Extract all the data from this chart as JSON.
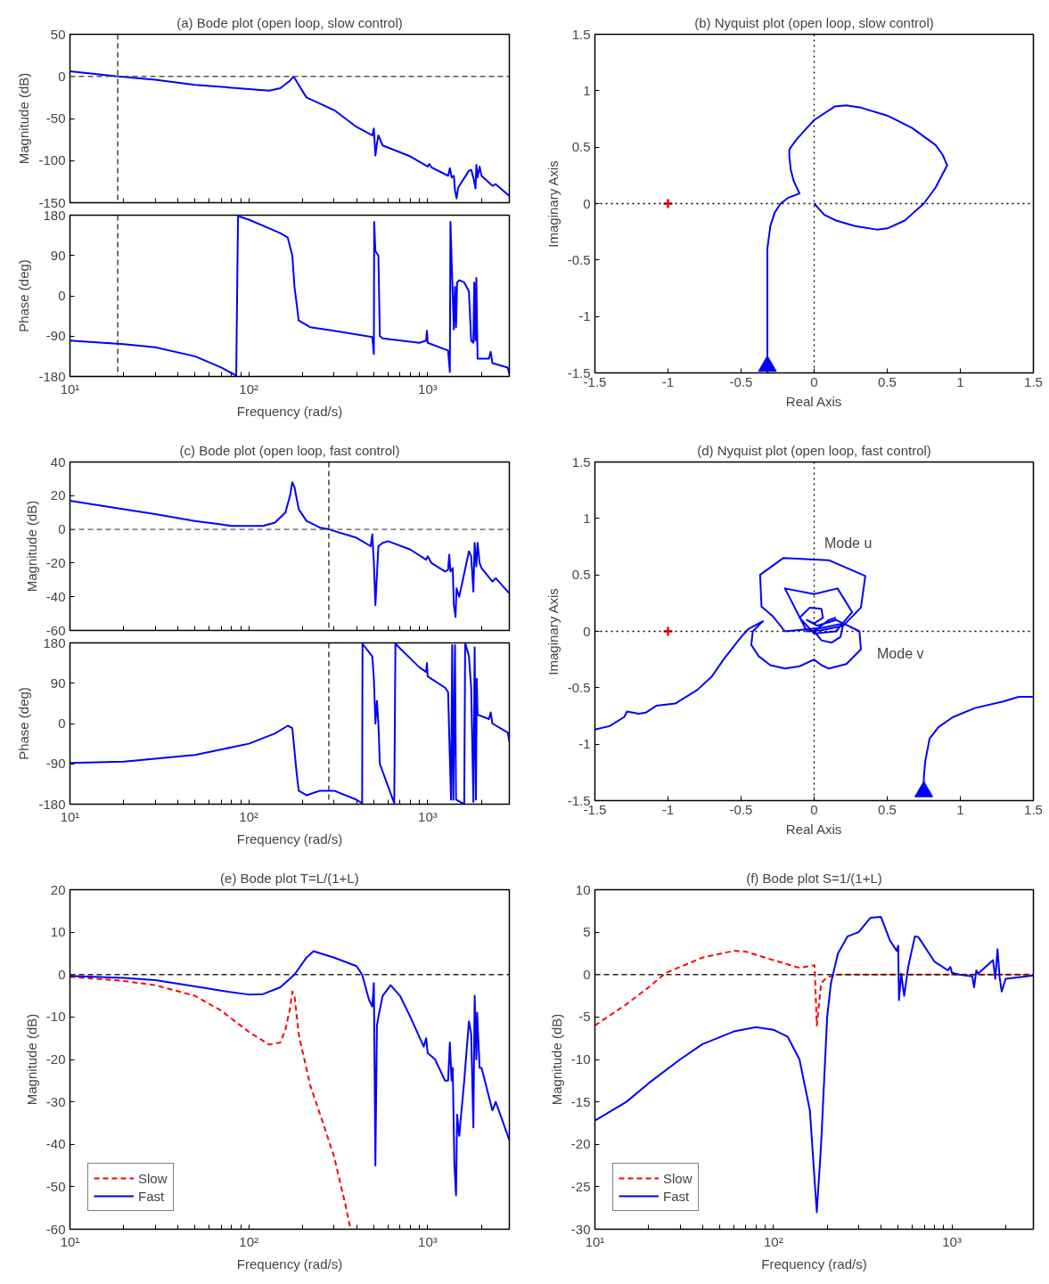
{
  "chart_data": [
    {
      "type": "line",
      "title": "(a) Bode plot (open loop, slow control)",
      "ylabel": "Magnitude (dB)",
      "log": "x",
      "tick_labels": "y",
      "grid": false,
      "xlim": [
        10,
        2860
      ],
      "ylim": [
        -150,
        50
      ],
      "yticks": [
        -150,
        -100,
        -50,
        0,
        50
      ],
      "xticks": [
        {
          "value": 10,
          "label": null
        },
        {
          "value": 20,
          "label": null
        },
        {
          "value": 30,
          "label": null
        },
        {
          "value": 40,
          "label": null
        },
        {
          "value": 50,
          "label": null
        },
        {
          "value": 60,
          "label": null
        },
        {
          "value": 70,
          "label": null
        },
        {
          "value": 80,
          "label": null
        },
        {
          "value": 90,
          "label": null
        },
        {
          "value": 100,
          "label": null
        },
        {
          "value": 200,
          "label": null
        },
        {
          "value": 300,
          "label": null
        },
        {
          "value": 400,
          "label": null
        },
        {
          "value": 500,
          "label": null
        },
        {
          "value": 600,
          "label": null
        },
        {
          "value": 700,
          "label": null
        },
        {
          "value": 800,
          "label": null
        },
        {
          "value": 900,
          "label": null
        },
        {
          "value": 1000,
          "label": null
        },
        {
          "value": 2000,
          "label": null
        }
      ],
      "ref_lines": [
        {
          "axis": "y",
          "value": 0,
          "label": null,
          "color": "#555555",
          "line_style": "dashed"
        },
        {
          "axis": "x",
          "value": 18.5,
          "label": null,
          "color": "#222222",
          "line_style": "dashed"
        }
      ],
      "series": [
        {
          "color": "#0000ff",
          "x": [
            10,
            18.5,
            30,
            50,
            100,
            130,
            150,
            170,
            178,
            190,
            210,
            300,
            400,
            490,
            500,
            510,
            520,
            530,
            560,
            800,
            1000,
            1020,
            1050,
            1300,
            1330,
            1360,
            1400,
            1420,
            1450,
            1480,
            1700,
            1750,
            1800,
            1850,
            1870,
            1900,
            1950,
            2000,
            2300,
            2400,
            2860
          ],
          "values": [
            6,
            0,
            -4,
            -10,
            -15,
            -17,
            -14,
            -5,
            0,
            -10,
            -25,
            -40,
            -60,
            -70,
            -62,
            -94,
            -80,
            -70,
            -82,
            -95,
            -107,
            -104,
            -108,
            -118,
            -109,
            -120,
            -118,
            -135,
            -145,
            -132,
            -112,
            -111,
            -120,
            -133,
            -105,
            -120,
            -107,
            -118,
            -130,
            -128,
            -142
          ]
        }
      ]
    },
    {
      "type": "line",
      "ylabel": "Phase (deg)",
      "xlabel": "Frequency (rad/s)",
      "log": "x",
      "grid": false,
      "xlim": [
        10,
        2860
      ],
      "ylim": [
        -180,
        180
      ],
      "yticks": [
        -180,
        -90,
        0,
        90,
        180
      ],
      "xticks": [
        {
          "value": 10,
          "label": "10¹"
        },
        {
          "value": 20,
          "label": null
        },
        {
          "value": 30,
          "label": null
        },
        {
          "value": 40,
          "label": null
        },
        {
          "value": 50,
          "label": null
        },
        {
          "value": 60,
          "label": null
        },
        {
          "value": 70,
          "label": null
        },
        {
          "value": 80,
          "label": null
        },
        {
          "value": 90,
          "label": null
        },
        {
          "value": 100,
          "label": "10²"
        },
        {
          "value": 200,
          "label": null
        },
        {
          "value": 300,
          "label": null
        },
        {
          "value": 400,
          "label": null
        },
        {
          "value": 500,
          "label": null
        },
        {
          "value": 600,
          "label": null
        },
        {
          "value": 700,
          "label": null
        },
        {
          "value": 800,
          "label": null
        },
        {
          "value": 900,
          "label": null
        },
        {
          "value": 1000,
          "label": "10³"
        },
        {
          "value": 2000,
          "label": null
        }
      ],
      "ref_lines": [
        {
          "axis": "x",
          "value": 18.5,
          "label": null,
          "color": "#222222",
          "line_style": "dashed"
        }
      ],
      "series": [
        {
          "color": "#0000ff",
          "x": [
            10,
            20,
            30,
            50,
            70,
            85,
            87,
            100,
            150,
            165,
            175,
            180,
            190,
            220,
            300,
            490,
            500,
            502,
            510,
            530,
            540,
            560,
            900,
            980,
            990,
            1000,
            1300,
            1330,
            1340,
            1360,
            1400,
            1420,
            1440,
            1460,
            1500,
            1600,
            1700,
            1750,
            1800,
            1820,
            1850,
            1870,
            1900,
            2200,
            2250,
            2300,
            2800,
            2860
          ],
          "values": [
            -100,
            -108,
            -115,
            -135,
            -160,
            -178,
            178,
            170,
            140,
            130,
            90,
            20,
            -55,
            -70,
            -78,
            -92,
            -130,
            165,
            100,
            90,
            -90,
            -95,
            -105,
            -100,
            -78,
            -105,
            -122,
            -170,
            165,
            80,
            -75,
            20,
            -70,
            30,
            35,
            30,
            10,
            -100,
            -105,
            30,
            -100,
            40,
            -140,
            -140,
            -125,
            -150,
            -160,
            -175
          ]
        }
      ]
    },
    {
      "type": "line",
      "title": "(b) Nyquist plot (open loop, slow control)",
      "xlabel": "Real Axis",
      "ylabel": "Imaginary Axis",
      "grid": false,
      "xlim": [
        -1.5,
        1.5
      ],
      "ylim": [
        -1.5,
        1.5
      ],
      "xticks": [
        -1.5,
        -1,
        -0.5,
        0,
        0.5,
        1,
        1.5
      ],
      "yticks": [
        -1.5,
        -1,
        -0.5,
        0,
        0.5,
        1,
        1.5
      ],
      "ref_lines": [
        {
          "axis": "x",
          "value": 0,
          "label": null,
          "color": "#000000",
          "line_style": "dotted"
        },
        {
          "axis": "y",
          "value": 0,
          "label": null,
          "color": "#000000",
          "line_style": "dotted"
        }
      ],
      "series": [
        {
          "color": "#0000ff",
          "x": [
            -0.32,
            -0.32,
            -0.32,
            -0.3,
            -0.27,
            -0.23,
            -0.18,
            -0.1,
            -0.14,
            -0.16,
            -0.17,
            -0.17,
            -0.12,
            -0.05,
            0,
            0.14,
            0.22,
            0.32,
            0.5,
            0.67,
            0.83,
            0.88,
            0.91,
            0.83,
            0.75,
            0.62,
            0.5,
            0.43,
            0.28,
            0.15,
            0.07,
            0
          ],
          "values": [
            -1.5,
            -0.8,
            -0.4,
            -0.2,
            -0.08,
            0,
            0.05,
            0.09,
            0.2,
            0.3,
            0.42,
            0.48,
            0.57,
            0.67,
            0.74,
            0.86,
            0.87,
            0.85,
            0.78,
            0.67,
            0.52,
            0.43,
            0.34,
            0.14,
            0,
            -0.15,
            -0.22,
            -0.23,
            -0.2,
            -0.15,
            -0.1,
            0
          ]
        },
        {
          "type": "scatter",
          "marker": "triangle",
          "color": "#0000ff",
          "x": [
            -0.32
          ],
          "values": [
            -1.44
          ]
        },
        {
          "type": "scatter",
          "marker": "cross",
          "color": "#ff0000",
          "x": [
            -1
          ],
          "values": [
            0
          ]
        }
      ]
    },
    {
      "type": "line",
      "title": "(c) Bode plot (open loop, fast control)",
      "ylabel": "Magnitude (dB)",
      "log": "x",
      "tick_labels": "y",
      "grid": false,
      "xlim": [
        10,
        2860
      ],
      "ylim": [
        -60,
        40
      ],
      "yticks": [
        -60,
        -40,
        -20,
        0,
        20,
        40
      ],
      "xticks": [
        {
          "value": 10,
          "label": null
        },
        {
          "value": 20,
          "label": null
        },
        {
          "value": 30,
          "label": null
        },
        {
          "value": 40,
          "label": null
        },
        {
          "value": 50,
          "label": null
        },
        {
          "value": 60,
          "label": null
        },
        {
          "value": 70,
          "label": null
        },
        {
          "value": 80,
          "label": null
        },
        {
          "value": 90,
          "label": null
        },
        {
          "value": 100,
          "label": null
        },
        {
          "value": 200,
          "label": null
        },
        {
          "value": 300,
          "label": null
        },
        {
          "value": 400,
          "label": null
        },
        {
          "value": 500,
          "label": null
        },
        {
          "value": 600,
          "label": null
        },
        {
          "value": 700,
          "label": null
        },
        {
          "value": 800,
          "label": null
        },
        {
          "value": 900,
          "label": null
        },
        {
          "value": 1000,
          "label": null
        },
        {
          "value": 2000,
          "label": null
        }
      ],
      "ref_lines": [
        {
          "axis": "y",
          "value": 0,
          "label": null,
          "color": "#555555",
          "line_style": "dashed"
        },
        {
          "axis": "x",
          "value": 280,
          "label": null,
          "color": "#222222",
          "line_style": "dashed"
        }
      ],
      "series": [
        {
          "color": "#0000ff",
          "x": [
            10,
            20,
            30,
            50,
            70,
            80,
            120,
            140,
            160,
            170,
            175,
            180,
            190,
            210,
            250,
            280,
            400,
            480,
            490,
            500,
            510,
            530,
            560,
            600,
            800,
            980,
            1000,
            1050,
            1250,
            1300,
            1320,
            1340,
            1380,
            1400,
            1430,
            1450,
            1500,
            1700,
            1750,
            1800,
            1830,
            1870,
            1900,
            1950,
            2000,
            2300,
            2400,
            2860
          ],
          "values": [
            17,
            12,
            9,
            5,
            3,
            2,
            2,
            4,
            10,
            20,
            28,
            25,
            12,
            5,
            1,
            0,
            -5,
            -10,
            -3,
            -20,
            -45,
            -10,
            -8,
            -7,
            -12,
            -18,
            -16,
            -20,
            -25,
            -24,
            -15,
            -25,
            -23,
            -45,
            -52,
            -35,
            -40,
            -13,
            -16,
            -37,
            -8,
            -22,
            -8,
            -20,
            -23,
            -31,
            -29,
            -38
          ]
        }
      ]
    },
    {
      "type": "line",
      "ylabel": "Phase (deg)",
      "xlabel": "Frequency (rad/s)",
      "log": "x",
      "grid": false,
      "xlim": [
        10,
        2860
      ],
      "ylim": [
        -180,
        180
      ],
      "yticks": [
        -180,
        -90,
        0,
        90,
        180
      ],
      "xticks": [
        {
          "value": 10,
          "label": "10¹"
        },
        {
          "value": 20,
          "label": null
        },
        {
          "value": 30,
          "label": null
        },
        {
          "value": 40,
          "label": null
        },
        {
          "value": 50,
          "label": null
        },
        {
          "value": 60,
          "label": null
        },
        {
          "value": 70,
          "label": null
        },
        {
          "value": 80,
          "label": null
        },
        {
          "value": 90,
          "label": null
        },
        {
          "value": 100,
          "label": "10²"
        },
        {
          "value": 200,
          "label": null
        },
        {
          "value": 300,
          "label": null
        },
        {
          "value": 400,
          "label": null
        },
        {
          "value": 500,
          "label": null
        },
        {
          "value": 600,
          "label": null
        },
        {
          "value": 700,
          "label": null
        },
        {
          "value": 800,
          "label": null
        },
        {
          "value": 900,
          "label": null
        },
        {
          "value": 1000,
          "label": "10³"
        },
        {
          "value": 2000,
          "label": null
        }
      ],
      "ref_lines": [
        {
          "axis": "x",
          "value": 280,
          "label": null,
          "color": "#222222",
          "line_style": "dashed"
        }
      ],
      "series": [
        {
          "color": "#0000ff",
          "x": [
            10,
            20,
            50,
            100,
            140,
            165,
            175,
            185,
            190,
            210,
            250,
            300,
            400,
            430,
            432,
            490,
            500,
            510,
            520,
            530,
            540,
            600,
            650,
            660,
            900,
            980,
            990,
            1000,
            1250,
            1300,
            1330,
            1350,
            1370,
            1390,
            1420,
            1440,
            1600,
            1620,
            1700,
            1750,
            1800,
            1830,
            1860,
            1880,
            1900,
            2200,
            2250,
            2300,
            2800,
            2860
          ],
          "values": [
            -88,
            -85,
            -70,
            -45,
            -22,
            -5,
            -10,
            -110,
            -150,
            -160,
            -150,
            -150,
            -170,
            -178,
            178,
            150,
            100,
            0,
            50,
            0,
            -90,
            -140,
            -178,
            178,
            125,
            115,
            135,
            105,
            80,
            70,
            -80,
            -170,
            175,
            -170,
            175,
            -170,
            -180,
            180,
            150,
            80,
            -175,
            170,
            -170,
            100,
            20,
            10,
            25,
            0,
            -20,
            -40
          ]
        }
      ]
    },
    {
      "type": "line",
      "title": "(d) Nyquist plot (open loop, fast control)",
      "xlabel": "Real Axis",
      "ylabel": "Imaginary Axis",
      "grid": false,
      "xlim": [
        -1.5,
        1.5
      ],
      "ylim": [
        -1.5,
        1.5
      ],
      "xticks": [
        -1.5,
        -1,
        -0.5,
        0,
        0.5,
        1,
        1.5
      ],
      "yticks": [
        -1.5,
        -1,
        -0.5,
        0,
        0.5,
        1,
        1.5
      ],
      "ref_lines": [
        {
          "axis": "x",
          "value": 0,
          "label": null,
          "color": "#000000",
          "line_style": "dotted"
        },
        {
          "axis": "y",
          "value": 0,
          "label": null,
          "color": "#000000",
          "line_style": "dotted"
        }
      ],
      "annotations": [
        "Mode u",
        "Mode v"
      ],
      "series": [
        {
          "color": "#0000ff",
          "x": [
            -1.5,
            -1.4,
            -1.3,
            -1.28,
            -1.2,
            -1.15,
            -1.08,
            -0.95,
            -0.8,
            -0.7,
            -0.62,
            -0.5,
            -0.45,
            -0.35,
            -0.42,
            -0.43,
            -0.38,
            -0.3,
            -0.2,
            -0.1,
            0,
            0.05,
            0.1,
            0.22,
            0.32,
            0.31,
            0.2,
            0.05,
            -0.2,
            -0.28,
            -0.36,
            -0.37,
            -0.21,
            0.1,
            0.35,
            0.32,
            0.2,
            0.05,
            -0.05,
            -0.2,
            0,
            0.16,
            0.26,
            0.15,
            0,
            -0.1,
            -0.03,
            0.05,
            0.06,
            0,
            -0.05,
            0.02,
            0.15,
            0.2,
            0.18,
            0.12,
            0.05,
            0,
            0.1,
            0.15
          ],
          "values": [
            -0.87,
            -0.84,
            -0.76,
            -0.71,
            -0.73,
            -0.72,
            -0.66,
            -0.64,
            -0.52,
            -0.4,
            -0.25,
            -0.05,
            0.02,
            0.09,
            0,
            -0.12,
            -0.22,
            -0.3,
            -0.33,
            -0.31,
            -0.25,
            -0.3,
            -0.33,
            -0.29,
            -0.16,
            0,
            0.07,
            0.03,
            0,
            0.13,
            0.22,
            0.5,
            0.65,
            0.63,
            0.49,
            0.21,
            0.05,
            0.01,
            0,
            0.38,
            0.33,
            0.38,
            0.17,
            0,
            -0.02,
            0.12,
            0.21,
            0.2,
            0.12,
            0.07,
            0.1,
            0.05,
            0.1,
            0.07,
            -0.05,
            -0.1,
            -0.08,
            0,
            0.1,
            0.12
          ]
        },
        {
          "color": "#0000ff",
          "x": [
            0.75,
            0.75,
            0.76,
            0.79,
            0.85,
            0.95,
            1.1,
            1.3,
            1.4,
            1.5
          ],
          "values": [
            -1.45,
            -1.3,
            -1.15,
            -0.95,
            -0.85,
            -0.76,
            -0.68,
            -0.62,
            -0.58,
            -0.58
          ]
        },
        {
          "type": "scatter",
          "marker": "triangle",
          "color": "#0000ff",
          "x": [
            0.75
          ],
          "values": [
            -1.42
          ]
        },
        {
          "type": "scatter",
          "marker": "cross",
          "color": "#ff0000",
          "x": [
            -1
          ],
          "values": [
            0
          ]
        }
      ]
    },
    {
      "type": "line",
      "title": "(e) Bode plot T=L/(1+L)",
      "xlabel": "Frequency (rad/s)",
      "ylabel": "Magnitude (dB)",
      "log": "x",
      "grid": false,
      "legend": "bottom left",
      "xlim": [
        10,
        2860
      ],
      "ylim": [
        -60,
        20
      ],
      "yticks": [
        -60,
        -50,
        -40,
        -30,
        -20,
        -10,
        0,
        10,
        20
      ],
      "xticks": [
        {
          "value": 10,
          "label": "10¹"
        },
        {
          "value": 20,
          "label": null
        },
        {
          "value": 30,
          "label": null
        },
        {
          "value": 40,
          "label": null
        },
        {
          "value": 50,
          "label": null
        },
        {
          "value": 60,
          "label": null
        },
        {
          "value": 70,
          "label": null
        },
        {
          "value": 80,
          "label": null
        },
        {
          "value": 90,
          "label": null
        },
        {
          "value": 100,
          "label": "10²"
        },
        {
          "value": 200,
          "label": null
        },
        {
          "value": 300,
          "label": null
        },
        {
          "value": 400,
          "label": null
        },
        {
          "value": 500,
          "label": null
        },
        {
          "value": 600,
          "label": null
        },
        {
          "value": 700,
          "label": null
        },
        {
          "value": 800,
          "label": null
        },
        {
          "value": 900,
          "label": null
        },
        {
          "value": 1000,
          "label": "10³"
        },
        {
          "value": 2000,
          "label": null
        }
      ],
      "ref_lines": [
        {
          "axis": "y",
          "value": 0,
          "label": null,
          "color": "#222222",
          "line_style": "dashed"
        }
      ],
      "series": [
        {
          "name": "Slow",
          "color": "#ff0000",
          "line_style": "dashed",
          "x": [
            10,
            20,
            30,
            50,
            70,
            100,
            130,
            150,
            160,
            170,
            175,
            180,
            190,
            220,
            260,
            300,
            350,
            370
          ],
          "values": [
            -0.5,
            -1.5,
            -2.5,
            -5,
            -8.5,
            -13.5,
            -16.5,
            -16,
            -13,
            -8,
            -4,
            -5,
            -14,
            -26,
            -35,
            -43,
            -55,
            -60
          ]
        },
        {
          "name": "Fast",
          "color": "#0000ff",
          "line_style": "solid",
          "x": [
            10,
            20,
            30,
            50,
            70,
            100,
            120,
            150,
            180,
            210,
            230,
            300,
            400,
            430,
            470,
            490,
            500,
            510,
            520,
            530,
            560,
            620,
            700,
            800,
            950,
            980,
            1000,
            1100,
            1250,
            1300,
            1330,
            1360,
            1380,
            1410,
            1440,
            1460,
            1500,
            1600,
            1700,
            1750,
            1800,
            1830,
            1870,
            1890,
            1950,
            2000,
            2300,
            2400,
            2860
          ],
          "values": [
            -0.3,
            -0.8,
            -1.3,
            -2.8,
            -3.8,
            -4.7,
            -4.6,
            -3,
            0,
            4,
            5.5,
            4,
            2,
            0,
            -6,
            -7.5,
            -2,
            -45,
            -12,
            -10,
            -5,
            -2.5,
            -5,
            -10,
            -17,
            -15,
            -18.5,
            -20,
            -25,
            -25,
            -16,
            -25,
            -22,
            -45,
            -52,
            -33,
            -38,
            -25,
            -11,
            -14,
            -36,
            -5,
            -20,
            -9,
            -22,
            -22,
            -32,
            -30,
            -39
          ]
        }
      ]
    },
    {
      "type": "line",
      "title": "(f) Bode plot S=1/(1+L)",
      "xlabel": "Frequency (rad/s)",
      "ylabel": "Magnitude (dB)",
      "log": "x",
      "grid": false,
      "legend": "bottom left",
      "xlim": [
        10,
        2860
      ],
      "ylim": [
        -30,
        10
      ],
      "yticks": [
        -30,
        -25,
        -20,
        -15,
        -10,
        -5,
        0,
        5,
        10
      ],
      "xticks": [
        {
          "value": 10,
          "label": "10¹"
        },
        {
          "value": 20,
          "label": null
        },
        {
          "value": 30,
          "label": null
        },
        {
          "value": 40,
          "label": null
        },
        {
          "value": 50,
          "label": null
        },
        {
          "value": 60,
          "label": null
        },
        {
          "value": 70,
          "label": null
        },
        {
          "value": 80,
          "label": null
        },
        {
          "value": 90,
          "label": null
        },
        {
          "value": 100,
          "label": "10²"
        },
        {
          "value": 200,
          "label": null
        },
        {
          "value": 300,
          "label": null
        },
        {
          "value": 400,
          "label": null
        },
        {
          "value": 500,
          "label": null
        },
        {
          "value": 600,
          "label": null
        },
        {
          "value": 700,
          "label": null
        },
        {
          "value": 800,
          "label": null
        },
        {
          "value": 900,
          "label": null
        },
        {
          "value": 1000,
          "label": "10³"
        },
        {
          "value": 2000,
          "label": null
        }
      ],
      "ref_lines": [
        {
          "axis": "y",
          "value": 0,
          "label": null,
          "color": "#222222",
          "line_style": "dashed"
        }
      ],
      "series": [
        {
          "name": "Slow",
          "color": "#ff0000",
          "line_style": "dashed",
          "x": [
            10,
            15,
            20,
            25,
            40,
            60,
            70,
            100,
            140,
            170,
            175,
            185,
            200,
            230,
            2860
          ],
          "values": [
            -6,
            -3.5,
            -1.5,
            0.2,
            2,
            2.8,
            2.7,
            1.7,
            0.8,
            1.1,
            -6,
            -1,
            -0.3,
            0,
            0
          ]
        },
        {
          "name": "Fast",
          "color": "#0000ff",
          "line_style": "solid",
          "x": [
            10,
            15,
            20,
            30,
            40,
            60,
            80,
            100,
            120,
            140,
            160,
            175,
            185,
            200,
            210,
            230,
            260,
            300,
            350,
            400,
            450,
            490,
            500,
            505,
            520,
            540,
            570,
            620,
            650,
            800,
            950,
            980,
            1000,
            1100,
            1300,
            1330,
            1370,
            1400,
            1700,
            1750,
            1800,
            1850,
            1900,
            2000,
            2860
          ],
          "values": [
            -17.2,
            -15,
            -12.8,
            -10,
            -8.2,
            -6.7,
            -6.2,
            -6.5,
            -7.3,
            -10,
            -16,
            -28,
            -20,
            -5,
            -1,
            2.5,
            4.5,
            5,
            6.7,
            6.8,
            4,
            2.8,
            3.4,
            -3,
            0.1,
            -2.5,
            1,
            4.5,
            4.4,
            1.5,
            0.5,
            0.9,
            0.2,
            0,
            -0.2,
            -1.5,
            0.5,
            0.1,
            1.7,
            -0.5,
            3,
            -0.3,
            -2,
            -0.5,
            -0.1
          ]
        }
      ]
    }
  ]
}
